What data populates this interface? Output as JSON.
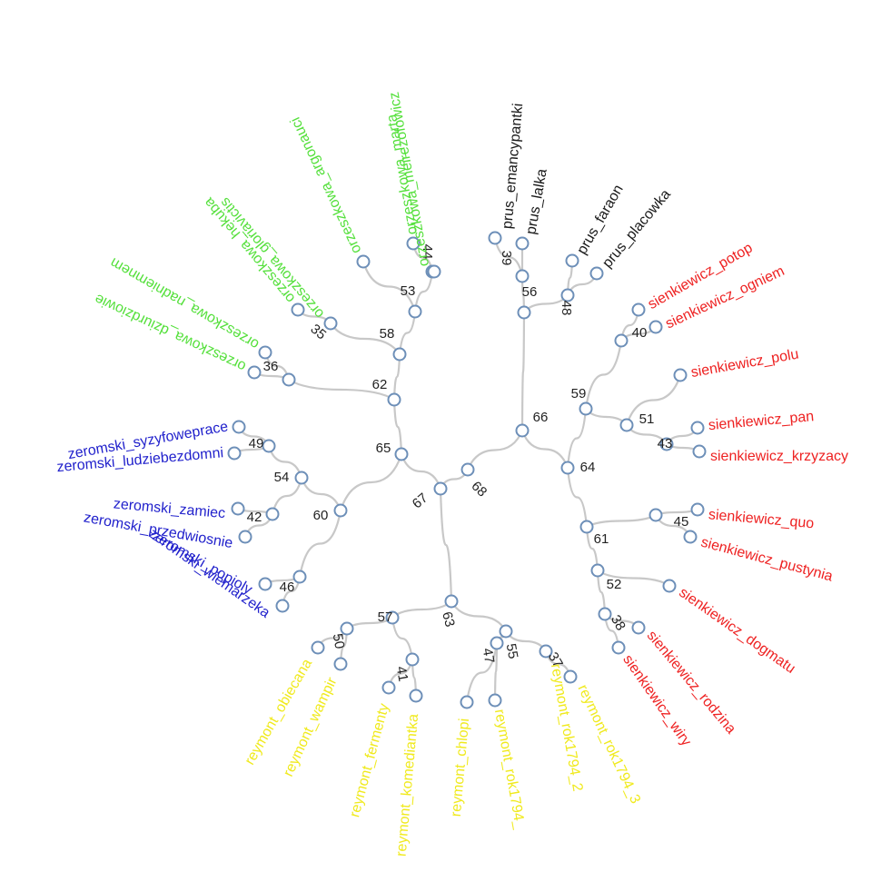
{
  "colors": {
    "orzeszkowa": "#55e03c",
    "prus": "#1a1a1a",
    "sienkiewicz": "#ee2222",
    "zeromski": "#2222cc",
    "reymont": "#f0ea1e",
    "edge": "#c8c8c8",
    "node_stroke": "#6d8fb8"
  },
  "tree": {
    "internal_nodes": [
      {
        "id": "n68",
        "label": "68"
      },
      {
        "id": "n67",
        "label": "67"
      },
      {
        "id": "n66",
        "label": "66"
      },
      {
        "id": "n65",
        "label": "65"
      },
      {
        "id": "n64",
        "label": "64"
      },
      {
        "id": "n63",
        "label": "63"
      },
      {
        "id": "n62",
        "label": "62"
      },
      {
        "id": "n61",
        "label": "61"
      },
      {
        "id": "n60",
        "label": "60"
      },
      {
        "id": "n59",
        "label": "59"
      },
      {
        "id": "n58",
        "label": "58"
      },
      {
        "id": "n57",
        "label": "57"
      },
      {
        "id": "n56",
        "label": "56"
      },
      {
        "id": "n55",
        "label": "55"
      },
      {
        "id": "n54",
        "label": "54"
      },
      {
        "id": "n53",
        "label": "53"
      },
      {
        "id": "n52",
        "label": "52"
      },
      {
        "id": "n51",
        "label": "51"
      },
      {
        "id": "n50",
        "label": "50"
      },
      {
        "id": "n49",
        "label": "49"
      },
      {
        "id": "n48",
        "label": "48"
      },
      {
        "id": "n47",
        "label": "47"
      },
      {
        "id": "n46",
        "label": "46"
      },
      {
        "id": "n45",
        "label": "45"
      },
      {
        "id": "n44",
        "label": "44"
      },
      {
        "id": "n43",
        "label": "43"
      },
      {
        "id": "n42",
        "label": "42"
      },
      {
        "id": "n41",
        "label": "41"
      },
      {
        "id": "n40",
        "label": "40"
      },
      {
        "id": "n39",
        "label": "39"
      },
      {
        "id": "n38",
        "label": "38"
      },
      {
        "id": "n37",
        "label": "37"
      },
      {
        "id": "n36",
        "label": "36"
      },
      {
        "id": "n35",
        "label": "35"
      }
    ],
    "leaves": [
      {
        "id": "l_o_marta",
        "label": "orzeszkowa_marta",
        "group": "orzeszkowa"
      },
      {
        "id": "l_o_meir",
        "label": "orzeszkowa_meirezofowicz",
        "group": "orzeszkowa"
      },
      {
        "id": "l_o_arg",
        "label": "orzeszkowa_argonauci",
        "group": "orzeszkowa"
      },
      {
        "id": "l_o_hek",
        "label": "orzeszkowa_hekuba",
        "group": "orzeszkowa"
      },
      {
        "id": "l_o_glor",
        "label": "orzeszkowa_gloriavictis",
        "group": "orzeszkowa"
      },
      {
        "id": "l_o_nad",
        "label": "orzeszkowa_nadniemnem",
        "group": "orzeszkowa"
      },
      {
        "id": "l_o_dziu",
        "label": "orzeszkowa_dziurdziowie",
        "group": "orzeszkowa"
      },
      {
        "id": "l_p_eman",
        "label": "prus_emancypantki",
        "group": "prus"
      },
      {
        "id": "l_p_lalka",
        "label": "prus_lalka",
        "group": "prus"
      },
      {
        "id": "l_p_faraon",
        "label": "prus_faraon",
        "group": "prus"
      },
      {
        "id": "l_p_plac",
        "label": "prus_placowka",
        "group": "prus"
      },
      {
        "id": "l_s_potop",
        "label": "sienkiewicz_potop",
        "group": "sienkiewicz"
      },
      {
        "id": "l_s_ogniem",
        "label": "sienkiewicz_ogniem",
        "group": "sienkiewicz"
      },
      {
        "id": "l_s_polu",
        "label": "sienkiewicz_polu",
        "group": "sienkiewicz"
      },
      {
        "id": "l_s_pan",
        "label": "sienkiewicz_pan",
        "group": "sienkiewicz"
      },
      {
        "id": "l_s_krzy",
        "label": "sienkiewicz_krzyzacy",
        "group": "sienkiewicz"
      },
      {
        "id": "l_s_quo",
        "label": "sienkiewicz_quo",
        "group": "sienkiewicz"
      },
      {
        "id": "l_s_pust",
        "label": "sienkiewicz_pustynia",
        "group": "sienkiewicz"
      },
      {
        "id": "l_s_dog",
        "label": "sienkiewicz_dogmatu",
        "group": "sienkiewicz"
      },
      {
        "id": "l_s_rodz",
        "label": "sienkiewicz_rodzina",
        "group": "sienkiewicz"
      },
      {
        "id": "l_s_wiry",
        "label": "sienkiewicz_wiry",
        "group": "sienkiewicz"
      },
      {
        "id": "l_z_syzy",
        "label": "zeromski_syzyfoweprace",
        "group": "zeromski"
      },
      {
        "id": "l_z_ludzie",
        "label": "zeromski_ludziebezdomni",
        "group": "zeromski"
      },
      {
        "id": "l_z_zamiec",
        "label": "zeromski_zamiec",
        "group": "zeromski"
      },
      {
        "id": "l_z_przed",
        "label": "zeromski_przedwiosnie",
        "group": "zeromski"
      },
      {
        "id": "l_z_pop",
        "label": "zeromski_popioly",
        "group": "zeromski"
      },
      {
        "id": "l_z_wiern",
        "label": "zeromski_wiemarzeka",
        "group": "zeromski"
      },
      {
        "id": "l_r_obiecana",
        "label": "reymont_obiecana",
        "group": "reymont"
      },
      {
        "id": "l_r_wampir",
        "label": "reymont_wampir",
        "group": "reymont"
      },
      {
        "id": "l_r_fermenty",
        "label": "reymont_fermenty",
        "group": "reymont"
      },
      {
        "id": "l_r_komed",
        "label": "reymont_komediantka",
        "group": "reymont"
      },
      {
        "id": "l_r_chlopi",
        "label": "reymont_chlopi",
        "group": "reymont"
      },
      {
        "id": "l_r_rok1",
        "label": "reymont_rok1794_",
        "group": "reymont"
      },
      {
        "id": "l_r_rok2",
        "label": "reymont_rok1794_2",
        "group": "reymont"
      },
      {
        "id": "l_r_rok3",
        "label": "reymont_rok1794_3",
        "group": "reymont"
      }
    ],
    "edges": [
      [
        "n68",
        "n67"
      ],
      [
        "n68",
        "n66"
      ],
      [
        "n67",
        "n65"
      ],
      [
        "n67",
        "n63"
      ],
      [
        "n66",
        "n56"
      ],
      [
        "n66",
        "n64"
      ],
      [
        "n65",
        "n62"
      ],
      [
        "n65",
        "n60"
      ],
      [
        "n62",
        "n58"
      ],
      [
        "n62",
        "n36"
      ],
      [
        "n58",
        "n53"
      ],
      [
        "n58",
        "n35"
      ],
      [
        "n53",
        "n44"
      ],
      [
        "n53",
        "l_o_arg"
      ],
      [
        "n44",
        "l_o_marta"
      ],
      [
        "n44",
        "l_o_meir"
      ],
      [
        "n35",
        "l_o_hek"
      ],
      [
        "n35",
        "l_o_glor"
      ],
      [
        "n36",
        "l_o_nad"
      ],
      [
        "n36",
        "l_o_dziu"
      ],
      [
        "n56",
        "n39"
      ],
      [
        "n56",
        "n48"
      ],
      [
        "n39",
        "l_p_eman"
      ],
      [
        "n39",
        "l_p_lalka"
      ],
      [
        "n48",
        "l_p_faraon"
      ],
      [
        "n48",
        "l_p_plac"
      ],
      [
        "n64",
        "n59"
      ],
      [
        "n64",
        "n61"
      ],
      [
        "n59",
        "n40"
      ],
      [
        "n59",
        "n51"
      ],
      [
        "n40",
        "l_s_potop"
      ],
      [
        "n40",
        "l_s_ogniem"
      ],
      [
        "n51",
        "l_s_polu"
      ],
      [
        "n51",
        "n43"
      ],
      [
        "n43",
        "l_s_pan"
      ],
      [
        "n43",
        "l_s_krzy"
      ],
      [
        "n61",
        "n45"
      ],
      [
        "n61",
        "n52"
      ],
      [
        "n45",
        "l_s_quo"
      ],
      [
        "n45",
        "l_s_pust"
      ],
      [
        "n52",
        "l_s_dog"
      ],
      [
        "n52",
        "n38"
      ],
      [
        "n38",
        "l_s_rodz"
      ],
      [
        "n38",
        "l_s_wiry"
      ],
      [
        "n60",
        "n54"
      ],
      [
        "n60",
        "n46"
      ],
      [
        "n54",
        "n49"
      ],
      [
        "n54",
        "n42"
      ],
      [
        "n49",
        "l_z_syzy"
      ],
      [
        "n49",
        "l_z_ludzie"
      ],
      [
        "n42",
        "l_z_zamiec"
      ],
      [
        "n42",
        "l_z_przed"
      ],
      [
        "n46",
        "l_z_pop"
      ],
      [
        "n46",
        "l_z_wiern"
      ],
      [
        "n63",
        "n57"
      ],
      [
        "n63",
        "n55"
      ],
      [
        "n57",
        "n50"
      ],
      [
        "n57",
        "n41"
      ],
      [
        "n50",
        "l_r_obiecana"
      ],
      [
        "n50",
        "l_r_wampir"
      ],
      [
        "n41",
        "l_r_fermenty"
      ],
      [
        "n41",
        "l_r_komed"
      ],
      [
        "n55",
        "n47"
      ],
      [
        "n55",
        "n37"
      ],
      [
        "n47",
        "l_r_chlopi"
      ],
      [
        "n47",
        "l_r_rok1"
      ],
      [
        "n37",
        "l_r_rok2"
      ],
      [
        "n37",
        "l_r_rok3"
      ]
    ]
  }
}
